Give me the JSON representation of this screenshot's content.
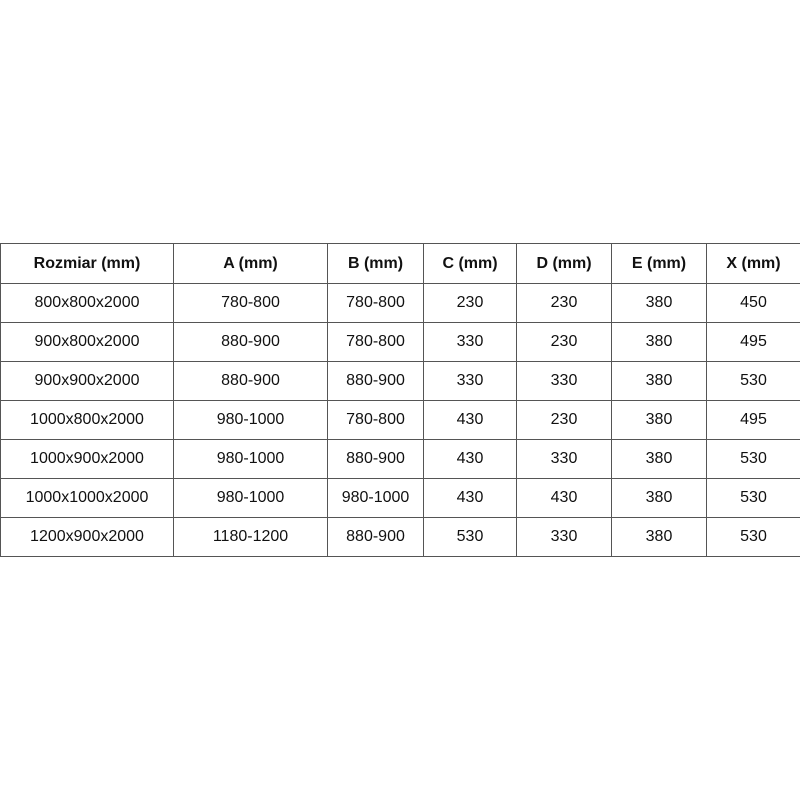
{
  "table": {
    "headers": [
      "Rozmiar (mm)",
      "A (mm)",
      "B (mm)",
      "C (mm)",
      "D (mm)",
      "E (mm)",
      "X (mm)"
    ],
    "rows": [
      [
        "800x800x2000",
        "780-800",
        "780-800",
        "230",
        "230",
        "380",
        "450"
      ],
      [
        "900x800x2000",
        "880-900",
        "780-800",
        "330",
        "230",
        "380",
        "495"
      ],
      [
        "900x900x2000",
        "880-900",
        "880-900",
        "330",
        "330",
        "380",
        "530"
      ],
      [
        "1000x800x2000",
        "980-1000",
        "780-800",
        "430",
        "230",
        "380",
        "495"
      ],
      [
        "1000x900x2000",
        "980-1000",
        "880-900",
        "430",
        "330",
        "380",
        "530"
      ],
      [
        "1000x1000x2000",
        "980-1000",
        "980-1000",
        "430",
        "430",
        "380",
        "530"
      ],
      [
        "1200x900x2000",
        "1180-1200",
        "880-900",
        "530",
        "330",
        "380",
        "530"
      ]
    ]
  }
}
